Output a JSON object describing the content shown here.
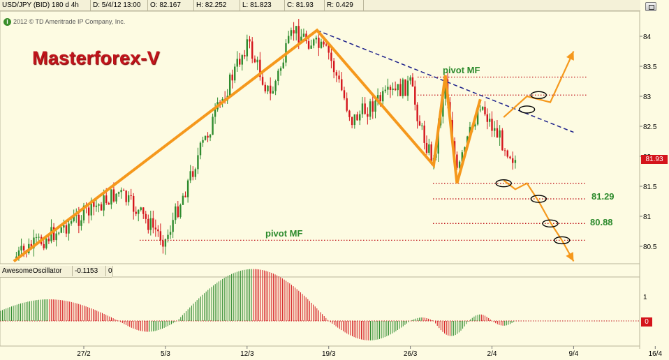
{
  "header": {
    "symbol": "USD/JPY (BID) 180 d 4h",
    "date": "D: 5/4/12 13:00",
    "open": "O: 82.167",
    "high": "H: 82.252",
    "low": "L: 81.823",
    "close": "C: 81.93",
    "range": "R: 0.429"
  },
  "copyright": "2012 © TD Ameritrade IP Company, Inc.",
  "brand": "Masterforex-V",
  "labels": {
    "pivot_top": "pivot MF",
    "pivot_bottom": "pivot MF",
    "level_1": "81.29",
    "level_2": "80.88"
  },
  "current_price": "81.93",
  "oscillator": {
    "name": "AwesomeOscillator",
    "value": "-0.1153",
    "box": "0",
    "zero_label": "0",
    "top_label": "1"
  },
  "colors": {
    "up": "#2e8b2e",
    "down": "#d4141b",
    "pattern": "#f5981c",
    "trend": "#1b1f8a",
    "pivot": "#c0141b",
    "background": "#fdfbe2"
  },
  "chart_data": {
    "type": "candlestick",
    "title": "USD/JPY (BID) 180 d 4h",
    "y_ticks": [
      "84",
      "83.5",
      "83",
      "82.5",
      "82",
      "81.5",
      "81",
      "80.5"
    ],
    "ylim": [
      80.2,
      84.4
    ],
    "x_ticks": [
      "27/2",
      "5/3",
      "12/3",
      "19/3",
      "26/3",
      "2/4",
      "9/4",
      "16/4"
    ],
    "price_path": [
      {
        "date": "21/2",
        "price": 80.3
      },
      {
        "date": "1/3",
        "price": 81.4
      },
      {
        "date": "5/3",
        "price": 80.6
      },
      {
        "date": "8/3",
        "price": 82.1
      },
      {
        "date": "12/3",
        "price": 83.9
      },
      {
        "date": "14/3",
        "price": 83.0
      },
      {
        "date": "16/3",
        "price": 84.1
      },
      {
        "date": "19/3",
        "price": 83.7
      },
      {
        "date": "21/3",
        "price": 82.6
      },
      {
        "date": "23/3",
        "price": 82.9
      },
      {
        "date": "26/3",
        "price": 83.2
      },
      {
        "date": "27/3",
        "price": 82.4
      },
      {
        "date": "28/3",
        "price": 81.9
      },
      {
        "date": "29/3",
        "price": 83.3
      },
      {
        "date": "30/3",
        "price": 81.7
      },
      {
        "date": "1/4",
        "price": 82.9
      },
      {
        "date": "2/4",
        "price": 82.5
      },
      {
        "date": "4/4",
        "price": 81.93
      }
    ],
    "trendline": {
      "from": {
        "date": "18/3",
        "price": 84.1
      },
      "to": {
        "date": "9/4",
        "price": 82.4
      }
    },
    "pattern": [
      {
        "date": "21/2",
        "price": 80.25
      },
      {
        "date": "18/3",
        "price": 84.1
      },
      {
        "date": "28/3",
        "price": 81.85
      },
      {
        "date": "29/3",
        "price": 83.35
      },
      {
        "date": "30/3",
        "price": 81.55
      },
      {
        "date": "1/4",
        "price": 82.95
      }
    ],
    "projection_up": [
      {
        "date": "3/4",
        "price": 82.65
      },
      {
        "date": "5/4",
        "price": 83.0
      },
      {
        "date": "7/4",
        "price": 82.9
      },
      {
        "date": "9/4",
        "price": 83.75
      }
    ],
    "projection_down": [
      {
        "date": "3/4",
        "price": 81.6
      },
      {
        "date": "4/4",
        "price": 81.45
      },
      {
        "date": "5/4",
        "price": 81.55
      },
      {
        "date": "6/4",
        "price": 81.25
      },
      {
        "date": "7/4",
        "price": 80.9
      },
      {
        "date": "8/4",
        "price": 80.6
      },
      {
        "date": "9/4",
        "price": 80.25
      }
    ],
    "pivot_levels": [
      {
        "label": "pivot MF",
        "price": 83.32
      },
      {
        "label": "",
        "price": 83.02
      },
      {
        "label": "",
        "price": 81.55
      },
      {
        "label": "81.29",
        "price": 81.29
      },
      {
        "label": "80.88",
        "price": 80.88
      },
      {
        "label": "pivot MF",
        "price": 80.6
      }
    ],
    "circles": [
      {
        "date": "5/4",
        "price": 82.78
      },
      {
        "date": "6/4",
        "price": 83.02
      },
      {
        "date": "3/4",
        "price": 81.55
      },
      {
        "date": "6/4",
        "price": 81.29
      },
      {
        "date": "7/4",
        "price": 80.88
      },
      {
        "date": "8/4",
        "price": 80.6
      }
    ],
    "oscillator": {
      "name": "AwesomeOscillator",
      "ylim": [
        -0.6,
        1.4
      ],
      "waves": [
        {
          "from": "18/2",
          "to": "1/3",
          "peak": 0.5
        },
        {
          "from": "1/3",
          "to": "6/3",
          "peak": -0.25
        },
        {
          "from": "6/3",
          "to": "19/3",
          "peak": 1.2
        },
        {
          "from": "19/3",
          "to": "26/3",
          "peak": -0.45
        },
        {
          "from": "26/3",
          "to": "28/3",
          "peak": 0.08
        },
        {
          "from": "28/3",
          "to": "31/3",
          "peak": -0.35
        },
        {
          "from": "31/3",
          "to": "2/4",
          "peak": 0.15
        },
        {
          "from": "2/4",
          "to": "4/4",
          "peak": -0.11
        }
      ]
    }
  }
}
